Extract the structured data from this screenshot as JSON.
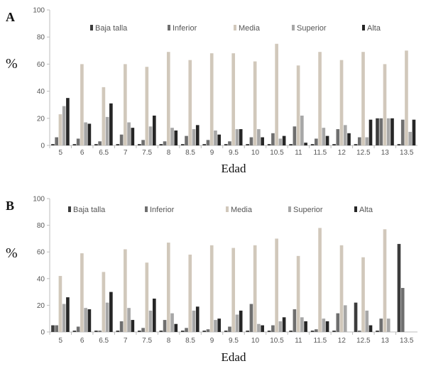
{
  "colors": {
    "Baja talla": "#3c3c3c",
    "Inferior": "#6f6f6f",
    "Media": "#d1c8bb",
    "Superior": "#a7a7a7",
    "Alta": "#262626",
    "axis": "#bdbdbd"
  },
  "chart_data": [
    {
      "panel_label": "A",
      "type": "bar",
      "xlabel": "Edad",
      "ylabel": "%",
      "ylim": [
        0,
        100
      ],
      "yticks": [
        "0",
        "20",
        "40",
        "60",
        "80",
        "100"
      ],
      "categories": [
        "5",
        "6",
        "6.5",
        "7",
        "7.5",
        "8",
        "8.5",
        "9",
        "9.5",
        "10",
        "10.5",
        "11",
        "11.5",
        "12",
        "12.5",
        "13",
        "13.5"
      ],
      "legend_position": "top",
      "series": [
        {
          "name": "Baja talla",
          "values": [
            1,
            1,
            1,
            1,
            1,
            1,
            1,
            1,
            1,
            1,
            1,
            1,
            1,
            1,
            1,
            20,
            1
          ]
        },
        {
          "name": "Inferior",
          "values": [
            6,
            5,
            3,
            8,
            4,
            3,
            7,
            4,
            3,
            6,
            9,
            14,
            5,
            12,
            6,
            20,
            19
          ]
        },
        {
          "name": "Media",
          "values": [
            23,
            60,
            43,
            60,
            58,
            69,
            63,
            68,
            68,
            62,
            75,
            59,
            69,
            63,
            69,
            60,
            70
          ]
        },
        {
          "name": "Superior",
          "values": [
            29,
            17,
            21,
            17,
            14,
            13,
            12,
            11,
            12,
            12,
            5,
            22,
            13,
            15,
            6,
            20,
            10
          ]
        },
        {
          "name": "Alta",
          "values": [
            35,
            16,
            31,
            13,
            22,
            11,
            15,
            8,
            12,
            6,
            7,
            2,
            7,
            9,
            19,
            20,
            19
          ]
        }
      ]
    },
    {
      "panel_label": "B",
      "type": "bar",
      "xlabel": "Edad",
      "ylabel": "%",
      "ylim": [
        0,
        100
      ],
      "yticks": [
        "0",
        "20",
        "40",
        "60",
        "80",
        "100"
      ],
      "categories": [
        "5",
        "6",
        "6.5",
        "7",
        "7.5",
        "8",
        "8.5",
        "9",
        "9.5",
        "10",
        "10.5",
        "11",
        "11.5",
        "12",
        "12.5",
        "13",
        "13.5"
      ],
      "legend_position": "top",
      "series": [
        {
          "name": "Baja talla",
          "values": [
            5,
            1,
            1,
            1,
            1,
            1,
            1,
            1,
            1,
            1,
            1,
            1,
            1,
            1,
            22,
            1,
            66
          ]
        },
        {
          "name": "Inferior",
          "values": [
            5,
            4,
            1,
            8,
            3,
            9,
            3,
            2,
            4,
            21,
            5,
            17,
            2,
            14,
            1,
            10,
            33
          ]
        },
        {
          "name": "Media",
          "values": [
            42,
            59,
            45,
            62,
            52,
            67,
            58,
            65,
            63,
            65,
            70,
            57,
            78,
            65,
            56,
            77,
            0
          ]
        },
        {
          "name": "Superior",
          "values": [
            21,
            18,
            22,
            18,
            16,
            14,
            16,
            9,
            13,
            6,
            8,
            11,
            10,
            20,
            16,
            10,
            0
          ]
        },
        {
          "name": "Alta",
          "values": [
            26,
            17,
            30,
            9,
            25,
            6,
            19,
            10,
            16,
            5,
            11,
            8,
            8,
            0,
            5,
            0,
            0
          ]
        }
      ]
    }
  ]
}
